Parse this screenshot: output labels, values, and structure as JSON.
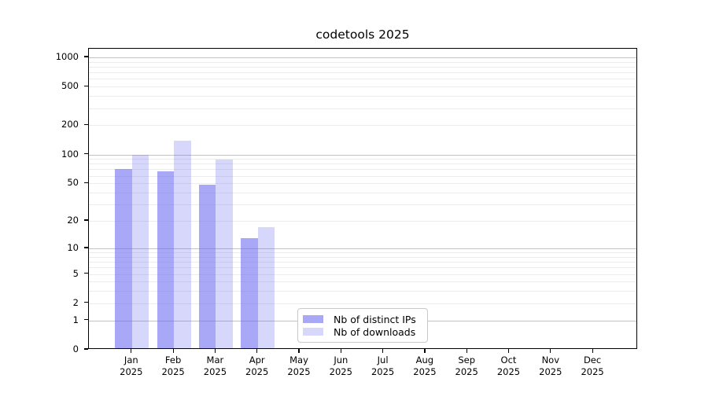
{
  "title": "codetools 2025",
  "chart_data": {
    "type": "bar",
    "title": "codetools 2025",
    "y_scale": "log1p",
    "ylim": [
      0,
      1230
    ],
    "y_ticks": [
      0,
      1,
      2,
      5,
      10,
      20,
      50,
      100,
      200,
      500,
      1000
    ],
    "grid_major_lines": [
      1,
      10,
      100,
      1000
    ],
    "grid_minor_lines": [
      2,
      3,
      4,
      5,
      6,
      7,
      8,
      9,
      20,
      30,
      40,
      50,
      60,
      70,
      80,
      90,
      200,
      300,
      400,
      500,
      600,
      700,
      800,
      900
    ],
    "categories": [
      {
        "month": "Jan",
        "year": "2025"
      },
      {
        "month": "Feb",
        "year": "2025"
      },
      {
        "month": "Mar",
        "year": "2025"
      },
      {
        "month": "Apr",
        "year": "2025"
      },
      {
        "month": "May",
        "year": "2025"
      },
      {
        "month": "Jun",
        "year": "2025"
      },
      {
        "month": "Jul",
        "year": "2025"
      },
      {
        "month": "Aug",
        "year": "2025"
      },
      {
        "month": "Sep",
        "year": "2025"
      },
      {
        "month": "Oct",
        "year": "2025"
      },
      {
        "month": "Nov",
        "year": "2025"
      },
      {
        "month": "Dec",
        "year": "2025"
      }
    ],
    "series": [
      {
        "name": "Nb of distinct IPs",
        "color": "rgba(102,102,240,0.57)",
        "values": [
          70,
          67,
          48,
          13,
          0,
          0,
          0,
          0,
          0,
          0,
          0,
          0
        ]
      },
      {
        "name": "Nb of downloads",
        "color": "rgba(102,102,240,0.26)",
        "values": [
          99,
          138,
          88,
          17,
          0,
          0,
          0,
          0,
          0,
          0,
          0,
          0
        ]
      }
    ],
    "legend": {
      "position": "bottom-center",
      "labels": [
        "Nb of distinct IPs",
        "Nb of downloads"
      ]
    }
  },
  "colors": {
    "background": "#ffffff",
    "axis": "#000000",
    "grid_major": "#c3c3c3",
    "grid_minor": "#ececec",
    "text": "#000000"
  }
}
